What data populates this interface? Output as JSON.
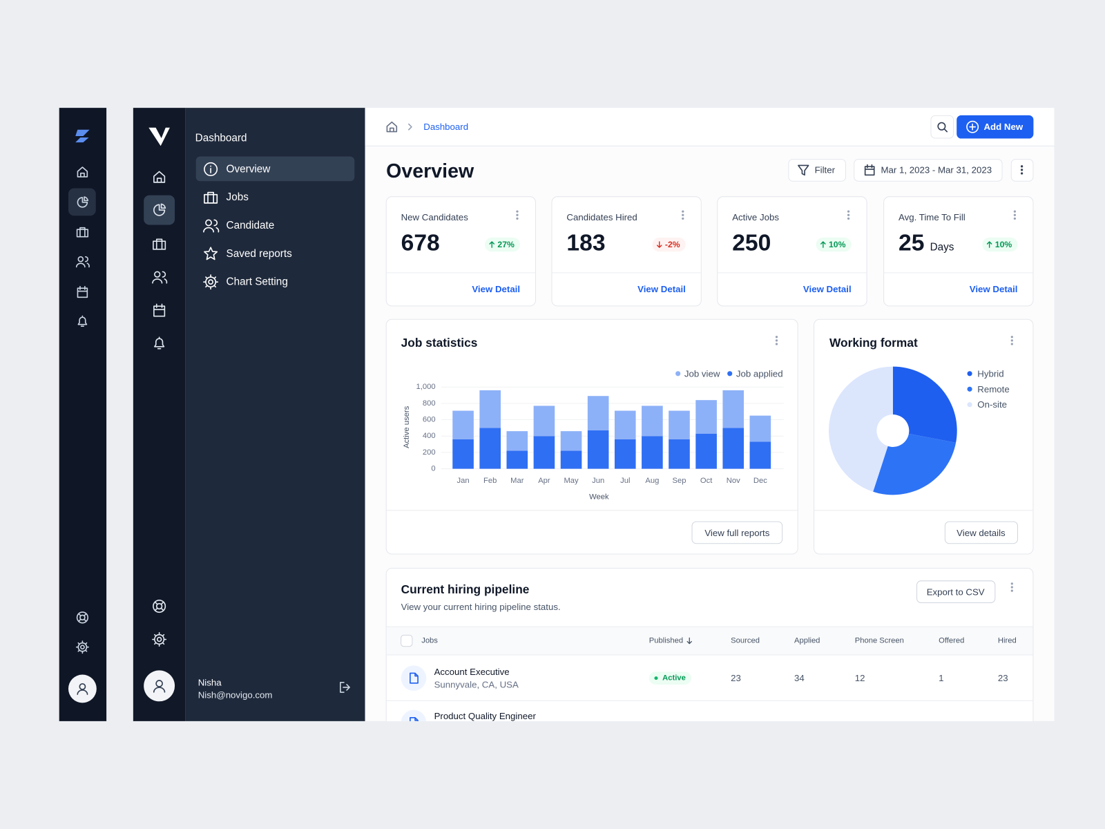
{
  "sidebar": {
    "title": "Dashboard",
    "menu": [
      "Overview",
      "Jobs",
      "Candidate",
      "Saved reports",
      "Chart Setting"
    ],
    "user": {
      "name": "Nisha",
      "email": "Nish@novigo.com"
    }
  },
  "header": {
    "breadcrumb": "Dashboard",
    "add_button": "Add New"
  },
  "page": {
    "title": "Overview",
    "filter": "Filter",
    "date_range": "Mar 1, 2023 - Mar 31, 2023"
  },
  "stats": [
    {
      "label": "New Candidates",
      "value": 678,
      "change": "27%",
      "trend": "up",
      "link": "View Detail"
    },
    {
      "label": "Candidates Hired",
      "value": 183,
      "change": "-2%",
      "trend": "down",
      "link": "View Detail"
    },
    {
      "label": "Active Jobs",
      "value": 250,
      "change": "10%",
      "trend": "up",
      "link": "View Detail"
    },
    {
      "label": "Avg. Time To Fill",
      "value": 25,
      "unit": "Days",
      "change": "10%",
      "trend": "up",
      "link": "View Detail"
    }
  ],
  "chart_data": [
    {
      "type": "bar",
      "stacked": true,
      "title": "Job statistics",
      "xlabel": "Week",
      "ylabel": "Active users",
      "categories": [
        "Jan",
        "Feb",
        "Mar",
        "Apr",
        "May",
        "Jun",
        "Jul",
        "Aug",
        "Sep",
        "Oct",
        "Nov",
        "Dec"
      ],
      "series": [
        {
          "name": "Job view",
          "color": "#8db1f8",
          "values": [
            350,
            460,
            240,
            370,
            240,
            420,
            350,
            370,
            350,
            410,
            460,
            320
          ]
        },
        {
          "name": "Job applied",
          "color": "#2f6ff3",
          "values": [
            360,
            500,
            220,
            400,
            220,
            470,
            360,
            400,
            360,
            430,
            500,
            330
          ]
        }
      ],
      "ylim": [
        0,
        1000
      ],
      "yticks": [
        0,
        200,
        400,
        600,
        800,
        {
          "value": 1000,
          "label": "1,000"
        }
      ],
      "grid": true,
      "legend": "top-right",
      "button": "View full reports"
    },
    {
      "type": "pie",
      "title": "Working format",
      "categories": [
        "Hybrid",
        "Remote",
        "On-site"
      ],
      "values": [
        28,
        27,
        45
      ],
      "colors": [
        "#1f5fef",
        "#2d73f5",
        "#dbe6fd"
      ],
      "legend": "right",
      "button": "View details"
    }
  ],
  "pipeline": {
    "title": "Current hiring pipeline",
    "subtitle": "View your current hiring pipeline status.",
    "export": "Export to CSV",
    "columns": [
      "Jobs",
      "Published",
      "Sourced",
      "Applied",
      "Phone Screen",
      "Offered",
      "Hired"
    ],
    "rows": [
      {
        "job": "Account Executive",
        "location": "Sunnyvale, CA, USA",
        "status": "Active",
        "sourced": 23,
        "applied": 34,
        "phone_screen": 12,
        "offered": 1,
        "hired": 23
      },
      {
        "job": "Product Quality Engineer"
      }
    ]
  }
}
